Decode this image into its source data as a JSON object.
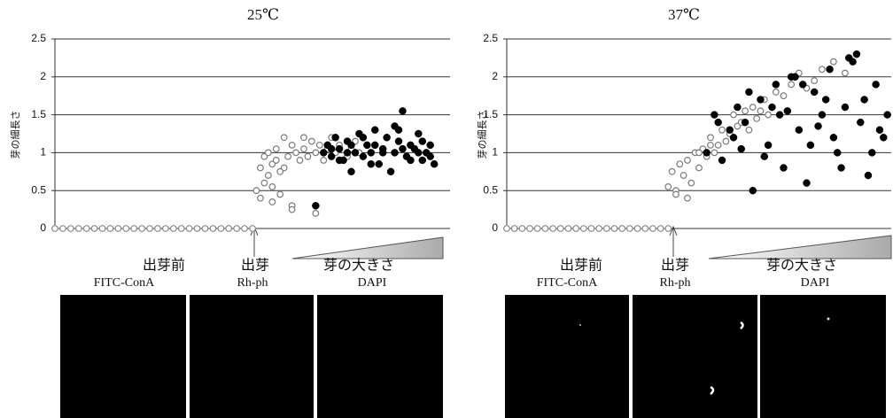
{
  "chart_data": [
    {
      "type": "scatter",
      "title": "25℃",
      "ylabel": "芽の細長さ",
      "xlim": [
        0,
        100
      ],
      "ylim": [
        0,
        2.5
      ],
      "yticks": [
        0,
        0.5,
        1,
        1.5,
        2,
        2.5
      ],
      "grid": true,
      "series": [
        {
          "marker": "open",
          "color": "#8a8a8a",
          "x": [
            0,
            2,
            4,
            6,
            8,
            10,
            12,
            14,
            16,
            18,
            20,
            22,
            24,
            26,
            28,
            30,
            32,
            34,
            36,
            38,
            40,
            42,
            44,
            46,
            48,
            50
          ],
          "values": [
            0,
            0,
            0,
            0,
            0,
            0,
            0,
            0,
            0,
            0,
            0,
            0,
            0,
            0,
            0,
            0,
            0,
            0,
            0,
            0,
            0,
            0,
            0,
            0,
            0,
            0
          ]
        },
        {
          "marker": "open",
          "color": "#7a7a7a",
          "x": [
            51,
            52,
            52,
            53,
            53,
            54,
            54,
            55,
            55,
            56,
            56,
            57,
            58,
            58,
            59,
            60,
            60,
            61,
            62,
            63,
            63,
            64,
            65,
            66,
            67,
            68,
            69,
            70,
            71,
            72,
            74,
            75,
            76,
            77,
            55,
            57,
            60,
            66
          ],
          "values": [
            0.5,
            0.8,
            0.4,
            0.95,
            0.6,
            1.0,
            0.7,
            0.85,
            0.35,
            1.05,
            0.9,
            0.45,
            1.2,
            0.8,
            0.95,
            0.3,
            1.1,
            1.0,
            0.9,
            1.2,
            1.05,
            0.95,
            1.15,
            1.0,
            1.1,
            0.9,
            1.05,
            1.2,
            1.0,
            1.1,
            0.95,
            1.05,
            1.15,
            1.0,
            0.55,
            0.75,
            0.25,
            0.2
          ]
        },
        {
          "marker": "filled",
          "color": "#000000",
          "x": [
            66,
            68,
            69,
            70,
            71,
            72,
            73,
            74,
            75,
            76,
            77,
            78,
            79,
            80,
            81,
            82,
            83,
            84,
            85,
            86,
            87,
            88,
            89,
            90,
            91,
            92,
            93,
            94,
            95,
            96,
            70,
            72,
            75,
            78,
            80,
            83,
            86,
            88,
            90,
            93,
            95,
            74,
            81,
            87,
            92
          ],
          "values": [
            0.3,
            1.0,
            1.1,
            0.95,
            1.2,
            1.05,
            0.9,
            1.15,
            0.75,
            1.0,
            1.25,
            0.95,
            1.1,
            1.0,
            1.3,
            0.85,
            1.05,
            1.2,
            0.75,
            1.0,
            1.15,
            1.55,
            0.95,
            1.1,
            1.05,
            1.25,
            0.9,
            1.0,
            1.1,
            0.85,
            1.05,
            0.9,
            1.1,
            1.2,
            0.85,
            1.0,
            1.35,
            1.05,
            0.9,
            1.15,
            0.95,
            1.0,
            1.1,
            1.3,
            1.0
          ]
        }
      ],
      "stages": [
        "出芽前",
        "出芽",
        "芽の大きさ"
      ],
      "stains": [
        "FITC-ConA",
        "Rh-ph",
        "DAPI"
      ]
    },
    {
      "type": "scatter",
      "title": "37℃",
      "ylabel": "芽の細長さ",
      "xlim": [
        0,
        100
      ],
      "ylim": [
        0,
        2.5
      ],
      "yticks": [
        0,
        0.5,
        1,
        1.5,
        2,
        2.5
      ],
      "grid": true,
      "series": [
        {
          "marker": "open",
          "color": "#8a8a8a",
          "x": [
            0,
            2,
            4,
            6,
            8,
            10,
            12,
            14,
            16,
            18,
            20,
            22,
            24,
            26,
            28,
            30,
            32,
            34,
            36,
            38,
            40,
            42
          ],
          "values": [
            0,
            0,
            0,
            0,
            0,
            0,
            0,
            0,
            0,
            0,
            0,
            0,
            0,
            0,
            0,
            0,
            0,
            0,
            0,
            0,
            0,
            0
          ]
        },
        {
          "marker": "open",
          "color": "#7a7a7a",
          "x": [
            42,
            43,
            44,
            45,
            46,
            47,
            48,
            49,
            50,
            51,
            52,
            53,
            54,
            55,
            56,
            57,
            58,
            59,
            60,
            61,
            62,
            63,
            64,
            65,
            66,
            67,
            68,
            70,
            72,
            74,
            76,
            78,
            80,
            82,
            85,
            88,
            44,
            47,
            50,
            53
          ],
          "values": [
            0.55,
            0.75,
            0.5,
            0.85,
            0.7,
            0.9,
            0.6,
            1.0,
            0.8,
            1.05,
            0.95,
            1.2,
            1.0,
            1.1,
            1.3,
            1.15,
            1.25,
            1.5,
            1.35,
            1.4,
            1.55,
            1.3,
            1.6,
            1.45,
            1.55,
            1.7,
            1.5,
            1.8,
            1.75,
            1.9,
            2.05,
            1.85,
            1.95,
            2.1,
            2.2,
            2.05,
            0.45,
            0.4,
            1.0,
            1.1
          ]
        },
        {
          "marker": "filled",
          "color": "#000000",
          "x": [
            52,
            54,
            56,
            58,
            60,
            62,
            64,
            66,
            68,
            70,
            72,
            74,
            76,
            78,
            80,
            82,
            84,
            86,
            88,
            90,
            92,
            94,
            96,
            98,
            99,
            55,
            59,
            63,
            67,
            71,
            75,
            79,
            83,
            87,
            91,
            95,
            97,
            61,
            69,
            77,
            85,
            93,
            89,
            81,
            73
          ],
          "values": [
            1.0,
            1.5,
            0.9,
            1.3,
            1.6,
            1.4,
            0.5,
            1.7,
            1.1,
            1.9,
            0.8,
            2.0,
            1.3,
            0.6,
            1.8,
            1.5,
            2.1,
            1.0,
            1.6,
            2.2,
            1.4,
            0.7,
            1.9,
            1.2,
            1.5,
            1.4,
            1.2,
            1.8,
            0.95,
            1.5,
            2.0,
            1.1,
            1.7,
            0.8,
            2.3,
            1.0,
            1.3,
            1.05,
            1.6,
            1.9,
            1.2,
            1.7,
            2.25,
            1.35,
            1.55
          ]
        }
      ],
      "stages": [
        "出芽前",
        "出芽",
        "芽の大きさ"
      ],
      "stains": [
        "FITC-ConA",
        "Rh-ph",
        "DAPI"
      ]
    }
  ]
}
